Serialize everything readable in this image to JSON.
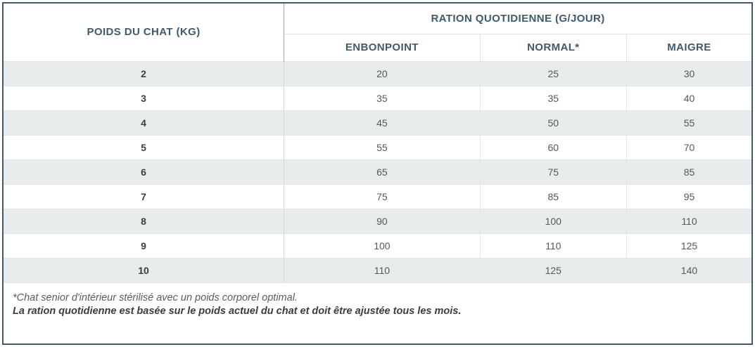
{
  "table": {
    "weight_header": "POIDS DU CHAT (KG)",
    "group_header": "RATION QUOTIDIENNE (G/JOUR)",
    "sub_headers": [
      "ENBONPOINT",
      "NORMAL*",
      "MAIGRE"
    ],
    "rows": [
      {
        "weight": "2",
        "values": [
          "20",
          "25",
          "30"
        ]
      },
      {
        "weight": "3",
        "values": [
          "35",
          "35",
          "40"
        ]
      },
      {
        "weight": "4",
        "values": [
          "45",
          "50",
          "55"
        ]
      },
      {
        "weight": "5",
        "values": [
          "55",
          "60",
          "70"
        ]
      },
      {
        "weight": "6",
        "values": [
          "65",
          "75",
          "85"
        ]
      },
      {
        "weight": "7",
        "values": [
          "75",
          "85",
          "95"
        ]
      },
      {
        "weight": "8",
        "values": [
          "90",
          "100",
          "110"
        ]
      },
      {
        "weight": "9",
        "values": [
          "100",
          "110",
          "125"
        ]
      },
      {
        "weight": "10",
        "values": [
          "110",
          "125",
          "140"
        ]
      }
    ]
  },
  "footnotes": {
    "line1": "*Chat senior d'intérieur stérilisé avec un poids corporel optimal.",
    "line2": "La ration quotidienne est basée sur le poids actuel du chat et doit être ajustée tous les mois."
  },
  "colors": {
    "header_text": "#3e5a6d",
    "outer_border": "#42596a",
    "shaded_row_bg": "#e9eced",
    "cell_border": "#e2e5e8",
    "body_text": "#54585b"
  },
  "chart_data": {
    "type": "table",
    "title": "RATION QUOTIDIENNE (G/JOUR)",
    "columns": [
      "POIDS DU CHAT (KG)",
      "ENBONPOINT",
      "NORMAL*",
      "MAIGRE"
    ],
    "rows": [
      [
        2,
        20,
        25,
        30
      ],
      [
        3,
        35,
        35,
        40
      ],
      [
        4,
        45,
        50,
        55
      ],
      [
        5,
        55,
        60,
        70
      ],
      [
        6,
        65,
        75,
        85
      ],
      [
        7,
        75,
        85,
        95
      ],
      [
        8,
        90,
        100,
        110
      ],
      [
        9,
        100,
        110,
        125
      ],
      [
        10,
        110,
        125,
        140
      ]
    ],
    "notes": [
      "*Chat senior d'intérieur stérilisé avec un poids corporel optimal.",
      "La ration quotidienne est basée sur le poids actuel du chat et doit être ajustée tous les mois."
    ]
  }
}
